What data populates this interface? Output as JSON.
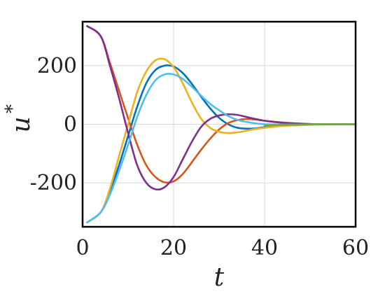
{
  "chart_data": {
    "type": "line",
    "title": "",
    "xlabel": "t",
    "ylabel": "u",
    "ylabel_superscript": "*",
    "xlim": [
      0,
      60
    ],
    "ylim": [
      -350,
      350
    ],
    "xticks": [
      0,
      20,
      40,
      60
    ],
    "xtick_labels": [
      "0",
      "20",
      "40",
      "60"
    ],
    "yticks": [
      -200,
      0,
      200
    ],
    "ytick_labels": [
      "-200",
      "0",
      "200"
    ],
    "grid": true,
    "legend": "none",
    "series": [
      {
        "color": "#0072BD",
        "x": [
          1,
          4,
          6,
          8,
          10,
          12,
          14,
          16,
          18,
          20,
          22,
          24,
          26,
          28,
          30,
          32,
          34,
          36,
          38,
          40,
          44,
          48,
          52,
          56,
          60
        ],
        "y": [
          -335,
          -300,
          -230,
          -140,
          -40,
          60,
          140,
          185,
          200,
          197,
          175,
          138,
          95,
          55,
          22,
          0,
          -12,
          -15,
          -14,
          -10,
          -4,
          -1,
          0,
          0,
          0
        ]
      },
      {
        "color": "#D95319",
        "x": [
          1,
          4,
          6,
          8,
          10,
          12,
          14,
          16,
          18,
          20,
          22,
          24,
          26,
          28,
          30,
          32,
          34,
          36,
          38,
          40,
          44,
          48,
          52,
          56,
          60
        ],
        "y": [
          335,
          300,
          210,
          115,
          20,
          -70,
          -140,
          -180,
          -198,
          -195,
          -170,
          -130,
          -88,
          -50,
          -18,
          4,
          14,
          18,
          16,
          12,
          6,
          2,
          0,
          0,
          0
        ]
      },
      {
        "color": "#EDB120",
        "x": [
          1,
          4,
          6,
          8,
          10,
          12,
          14,
          16,
          18,
          20,
          22,
          24,
          26,
          28,
          30,
          32,
          34,
          36,
          38,
          40,
          44,
          48,
          52,
          56,
          60
        ],
        "y": [
          -335,
          -300,
          -220,
          -110,
          0,
          110,
          180,
          218,
          222,
          195,
          140,
          75,
          20,
          -12,
          -26,
          -30,
          -28,
          -22,
          -16,
          -12,
          -6,
          -3,
          -1,
          0,
          0
        ]
      },
      {
        "color": "#7E2F8E",
        "x": [
          1,
          4,
          6,
          8,
          10,
          12,
          14,
          16,
          18,
          20,
          22,
          24,
          26,
          28,
          30,
          32,
          34,
          36,
          38,
          40,
          44,
          48,
          52,
          56,
          60
        ],
        "y": [
          335,
          300,
          200,
          90,
          -30,
          -140,
          -200,
          -222,
          -215,
          -180,
          -120,
          -60,
          -10,
          18,
          30,
          34,
          32,
          25,
          18,
          12,
          5,
          2,
          0,
          0,
          0
        ]
      },
      {
        "color": "#4DBEEE",
        "x": [
          1,
          4,
          6,
          8,
          10,
          12,
          14,
          16,
          18,
          20,
          22,
          24,
          26,
          28,
          30,
          32,
          34,
          36,
          38,
          40,
          44,
          48,
          52,
          56,
          60
        ],
        "y": [
          -335,
          -300,
          -240,
          -160,
          -70,
          25,
          100,
          150,
          170,
          170,
          155,
          128,
          98,
          70,
          48,
          28,
          15,
          8,
          3,
          0,
          -1,
          -1,
          0,
          0,
          0
        ]
      },
      {
        "color": "#77AC30",
        "x": [
          40,
          44,
          48,
          52,
          56,
          60
        ],
        "y": [
          -4,
          -2,
          -1,
          0,
          0,
          0
        ]
      }
    ]
  }
}
